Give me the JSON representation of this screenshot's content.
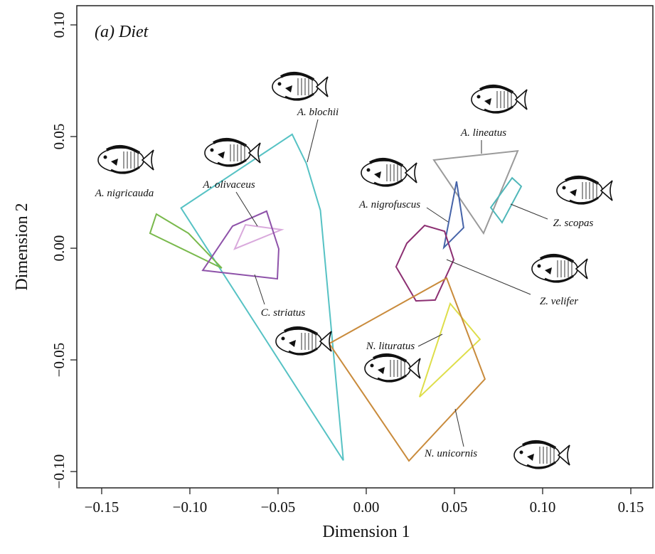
{
  "chart_data": {
    "type": "polygon",
    "title": "(a) Diet",
    "x_label": "Dimension 1",
    "y_label": "Dimension 2",
    "xlim": [
      -0.1641,
      0.1625
    ],
    "ylim": [
      -0.1073,
      0.1086
    ],
    "xticks": [
      {
        "value": -0.15,
        "label": "−0.15"
      },
      {
        "value": -0.1,
        "label": "−0.10"
      },
      {
        "value": -0.05,
        "label": "−0.05"
      },
      {
        "value": 0,
        "label": "0.00"
      },
      0.05,
      {
        "value": 0.1,
        "label": "0.10"
      },
      0.15
    ],
    "yticks": [
      {
        "value": -0.1,
        "label": "−0.10"
      },
      {
        "value": -0.05,
        "label": "−0.05"
      },
      {
        "value": 0,
        "label": "0.00"
      },
      0.05,
      {
        "value": 0.1,
        "label": "0.10"
      }
    ],
    "series": [
      {
        "name": "A. blochii",
        "color": "#56c2c4",
        "x": [
          -0.105,
          -0.042,
          -0.034,
          -0.026,
          -0.013
        ],
        "y": [
          0.018,
          0.051,
          0.038,
          0.017,
          -0.095
        ]
      },
      {
        "name": "A. nigricauda",
        "color": "#79b94c",
        "x": [
          -0.1226,
          -0.119,
          -0.1008,
          -0.0819
        ],
        "y": [
          0.0067,
          0.0153,
          0.0067,
          -0.0089
        ]
      },
      {
        "name": "A. olivaceus",
        "color": "#d9a9dc",
        "x": [
          -0.0746,
          -0.0685,
          -0.048
        ],
        "y": [
          -0.0003,
          0.0105,
          0.0083
        ]
      },
      {
        "name": "C. striatus",
        "color": "#8e52a9",
        "x": [
          -0.0758,
          -0.0565,
          -0.0496,
          -0.0504,
          -0.0927
        ],
        "y": [
          0.0099,
          0.0166,
          -0.0003,
          -0.0137,
          -0.0099
        ]
      },
      {
        "name": "A. lineatus",
        "color": "#9a9a9a",
        "x": [
          0.0383,
          0.0859,
          0.0665
        ],
        "y": [
          0.0395,
          0.0436,
          0.0067
        ]
      },
      {
        "name": "A. nigrofuscus",
        "color": "#4563a8",
        "x": [
          0.044,
          0.0512,
          0.0552
        ],
        "y": [
          0.0003,
          0.0299,
          0.0092
        ]
      },
      {
        "name": "Z. scopas",
        "color": "#4fb7b9",
        "x": [
          0.0706,
          0.0827,
          0.0879,
          0.077
        ],
        "y": [
          0.0182,
          0.0315,
          0.0277,
          0.0115
        ]
      },
      {
        "name": "Z. velifer",
        "color": "#8c2f72",
        "x": [
          0.0169,
          0.023,
          0.0331,
          0.0444,
          0.0496,
          0.0391,
          0.0282
        ],
        "y": [
          -0.0083,
          0.0022,
          0.0102,
          0.0076,
          -0.0051,
          -0.0232,
          -0.0236
        ]
      },
      {
        "name": "N. lituratus",
        "color": "#dede4a",
        "x": [
          0.0302,
          0.0476,
          0.0645
        ],
        "y": [
          -0.0666,
          -0.0248,
          -0.0408
        ]
      },
      {
        "name": "N. unicornis",
        "color": "#c98b3c",
        "x": [
          -0.021,
          0.0456,
          0.0673,
          0.0242
        ],
        "y": [
          -0.0427,
          -0.0134,
          -0.0586,
          -0.0952
        ]
      }
    ]
  }
}
